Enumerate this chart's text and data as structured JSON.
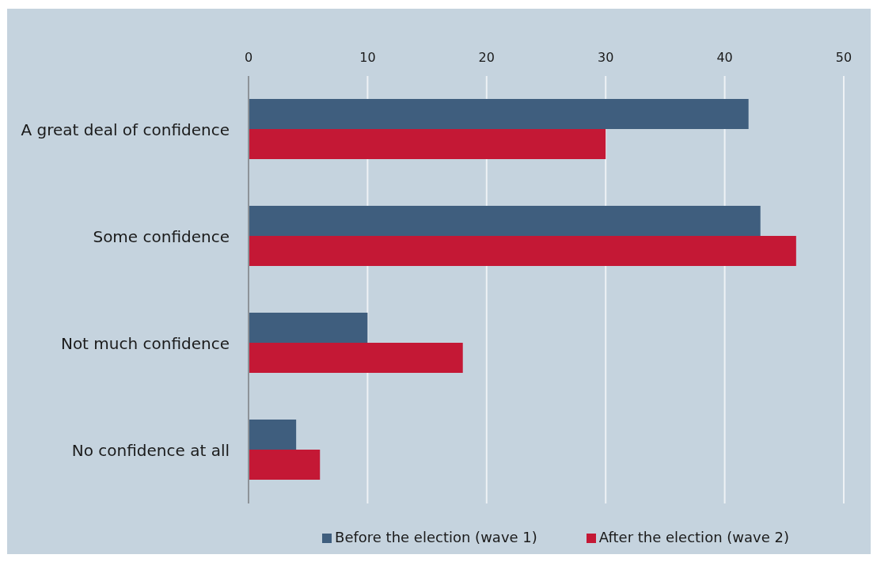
{
  "chart_data": {
    "type": "bar",
    "orientation": "horizontal",
    "categories": [
      "A great deal of confidence",
      "Some confidence",
      "Not much confidence",
      "No confidence at all"
    ],
    "series": [
      {
        "name": "Before the election (wave 1)",
        "color": "#3f5e7e",
        "values": [
          42,
          43,
          10,
          4
        ]
      },
      {
        "name": "After the election (wave 2)",
        "color": "#c41835",
        "values": [
          30,
          46,
          18,
          6
        ]
      }
    ],
    "xlim": [
      0,
      50
    ],
    "xticks": [
      0,
      10,
      20,
      30,
      40,
      50
    ],
    "grid": "x",
    "legend": "bottom"
  }
}
